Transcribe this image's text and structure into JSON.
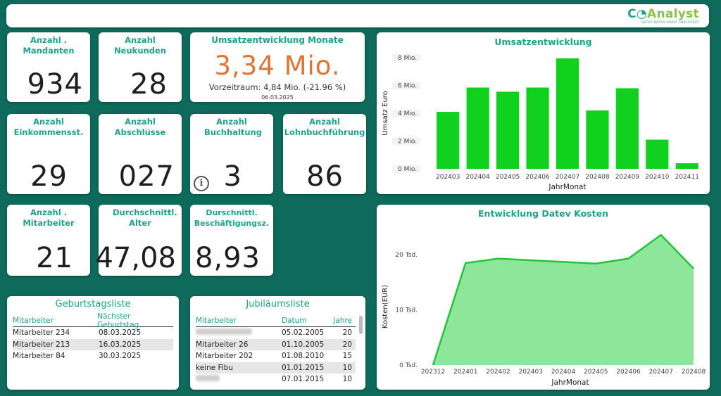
{
  "header": {
    "logo_prefix": "C",
    "logo_suffix": "Analyst",
    "logo_tagline": "DATEV-DATEN SMART ANALYSIERT"
  },
  "kpis": [
    {
      "title": "Anzahl . Mandanten",
      "value": "934"
    },
    {
      "title": "Anzahl Neukunden",
      "value": "28"
    },
    {
      "title": "Anzahl Einkommensst.",
      "value": "29"
    },
    {
      "title": "Anzahl Abschlüsse",
      "value": "027"
    },
    {
      "title": "Anzahl Buchhaltung",
      "value": "3"
    },
    {
      "title": "Anzahl Lohnbuchführung",
      "value": "86"
    },
    {
      "title": "Anzahl . Mitarbeiter",
      "value": "21"
    },
    {
      "title": "Durchschnittl. Alter",
      "value": "47,08"
    },
    {
      "title": "Durschnittl. Beschäftigungsz.",
      "value": "8,93"
    }
  ],
  "umsatz_card": {
    "title": "Umsatzentwicklung Monate",
    "value": "3,34 Mio.",
    "sub": "Vorzeitraum: 4,84 Mio. (-21.96 %)",
    "date": "06.03.2025"
  },
  "colors": {
    "background": "#0e6b5c",
    "accent": "#1fa28a",
    "bar": "#11d11f",
    "area_fill": "#8ee69b",
    "area_line": "#22c43a",
    "kpi_highlight": "#e07434"
  },
  "chart_data": [
    {
      "type": "bar",
      "title": "Umsatzentwicklung",
      "xlabel": "JahrMonat",
      "ylabel": "Umsatz Euro",
      "categories": [
        "202403",
        "202404",
        "202405",
        "202406",
        "202407",
        "202408",
        "202409",
        "202410",
        "202411"
      ],
      "values": [
        4.1,
        5.85,
        5.55,
        5.85,
        7.95,
        4.2,
        5.8,
        2.1,
        0.4
      ],
      "ylim": [
        0,
        8
      ],
      "ytick_values": [
        0,
        2,
        4,
        6,
        8
      ],
      "yticks": [
        "0 Mio.",
        "2 Mio.",
        "4 Mio.",
        "6 Mio.",
        "8 Mio."
      ]
    },
    {
      "type": "area",
      "title": "Entwicklung Datev Kosten",
      "xlabel": "JahrMonat",
      "ylabel": "Kosten(EUR)",
      "categories": [
        "202312",
        "202401",
        "202402",
        "202403",
        "202404",
        "202405",
        "202406",
        "202407",
        "202408"
      ],
      "values": [
        0,
        18500,
        19300,
        19000,
        18700,
        18400,
        19300,
        23600,
        17500
      ],
      "ylim": [
        0,
        25000
      ],
      "ytick_values": [
        0,
        10000,
        20000
      ],
      "yticks": [
        "0 Tsd.",
        "10 Tsd.",
        "20 Tsd."
      ]
    }
  ],
  "geburtstag": {
    "title": "Geburtstagsliste",
    "headers": [
      "Mitarbeiter",
      "Nächster Geburtstag"
    ],
    "rows": [
      [
        "Mitarbeiter 234",
        "08.03.2025"
      ],
      [
        "Mitarbeiter 213",
        "16.03.2025"
      ],
      [
        "Mitarbeiter 84",
        "30.03.2025"
      ]
    ]
  },
  "jubilaeum": {
    "title": "Jubiläumsliste",
    "headers": [
      "Mitarbeiter",
      "Datum",
      "Jahre"
    ],
    "rows": [
      [
        "",
        "05.02.2005",
        "20"
      ],
      [
        "Mitarbeiter 26",
        "01.10.2005",
        "20"
      ],
      [
        "Mitarbeiter 202",
        "01.08.2010",
        "15"
      ],
      [
        "keine Fibu",
        "01.01.2015",
        "10"
      ],
      [
        "",
        "07.01.2015",
        "10"
      ]
    ]
  }
}
